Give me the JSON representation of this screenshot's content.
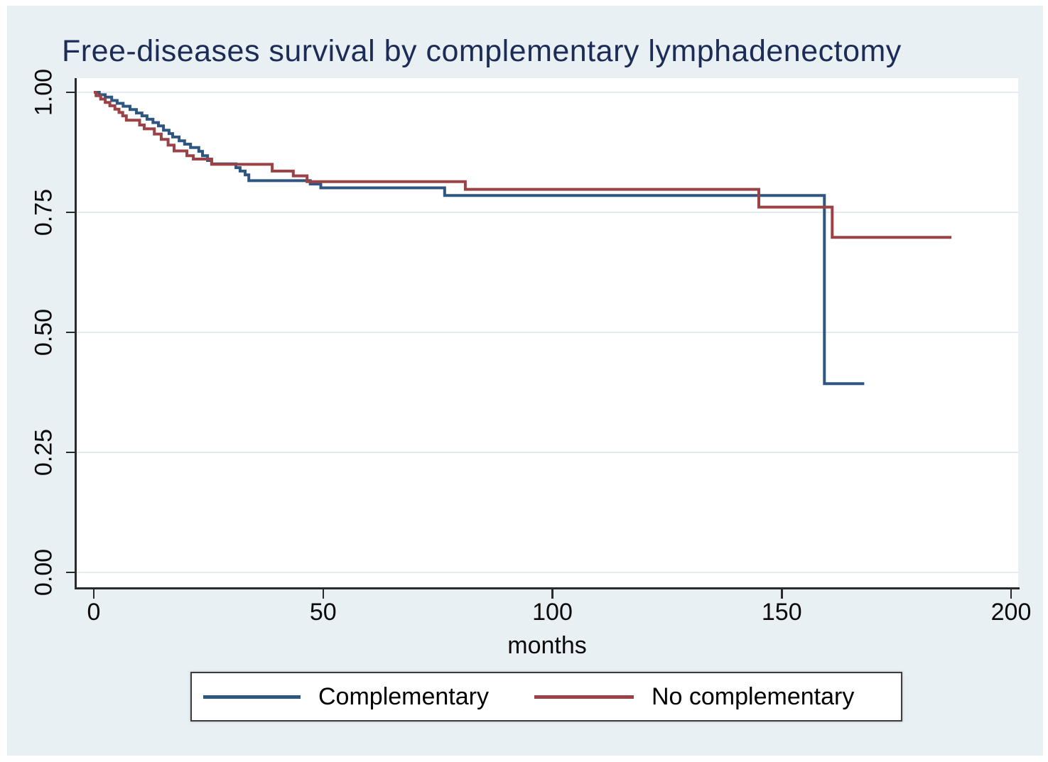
{
  "chart_data": {
    "type": "line",
    "subtype": "kaplan-meier-step",
    "title": "Free-diseases survival by complementary lymphadenectomy",
    "xlabel": "months",
    "ylabel": "",
    "x_ticks": [
      "0",
      "50",
      "100",
      "150",
      "200"
    ],
    "y_ticks": [
      "1.00",
      "0.75",
      "0.50",
      "0.25",
      "0.00"
    ],
    "xlim": [
      0,
      200
    ],
    "ylim": [
      0,
      1
    ],
    "grid": "horizontal",
    "legend_position": "bottom",
    "series": [
      {
        "name": "Complementary",
        "color": "#2f5680",
        "end_month": 168,
        "points": [
          [
            0,
            1.0
          ],
          [
            1.2,
            0.995
          ],
          [
            2.5,
            0.99
          ],
          [
            3.9,
            0.983
          ],
          [
            5.1,
            0.977
          ],
          [
            6.4,
            0.971
          ],
          [
            7.9,
            0.964
          ],
          [
            9.3,
            0.957
          ],
          [
            10.5,
            0.951
          ],
          [
            11.6,
            0.944
          ],
          [
            12.9,
            0.937
          ],
          [
            14.1,
            0.93
          ],
          [
            15.2,
            0.921
          ],
          [
            16.4,
            0.914
          ],
          [
            17.2,
            0.907
          ],
          [
            18.6,
            0.899
          ],
          [
            19.8,
            0.892
          ],
          [
            21.1,
            0.885
          ],
          [
            22.9,
            0.877
          ],
          [
            23.7,
            0.868
          ],
          [
            24.8,
            0.858
          ],
          [
            25.7,
            0.851
          ],
          [
            31.0,
            0.843
          ],
          [
            31.9,
            0.836
          ],
          [
            33.0,
            0.828
          ],
          [
            33.8,
            0.816
          ],
          [
            47.2,
            0.809
          ],
          [
            49.5,
            0.801
          ],
          [
            76.5,
            0.785
          ],
          [
            159.3,
            0.393
          ]
        ]
      },
      {
        "name": "No complementary",
        "color": "#9b4247",
        "end_month": 187,
        "points": [
          [
            0,
            1.0
          ],
          [
            0.5,
            0.993
          ],
          [
            1.5,
            0.986
          ],
          [
            2.5,
            0.979
          ],
          [
            3.5,
            0.972
          ],
          [
            4.6,
            0.965
          ],
          [
            5.5,
            0.958
          ],
          [
            6.3,
            0.951
          ],
          [
            7.1,
            0.942
          ],
          [
            10.0,
            0.932
          ],
          [
            11.0,
            0.924
          ],
          [
            13.2,
            0.913
          ],
          [
            14.7,
            0.902
          ],
          [
            16.2,
            0.89
          ],
          [
            17.5,
            0.878
          ],
          [
            20.3,
            0.868
          ],
          [
            21.7,
            0.861
          ],
          [
            25.7,
            0.85
          ],
          [
            38.9,
            0.836
          ],
          [
            43.5,
            0.826
          ],
          [
            46.5,
            0.814
          ],
          [
            81.0,
            0.798
          ],
          [
            145.0,
            0.761
          ],
          [
            161.0,
            0.698
          ]
        ]
      }
    ],
    "colors": {
      "background": "#e9f0f4",
      "plot_background": "#ffffff",
      "title": "#1c2c56",
      "gridline": "#e5ecf1",
      "axis": "#2a2a2a"
    }
  }
}
